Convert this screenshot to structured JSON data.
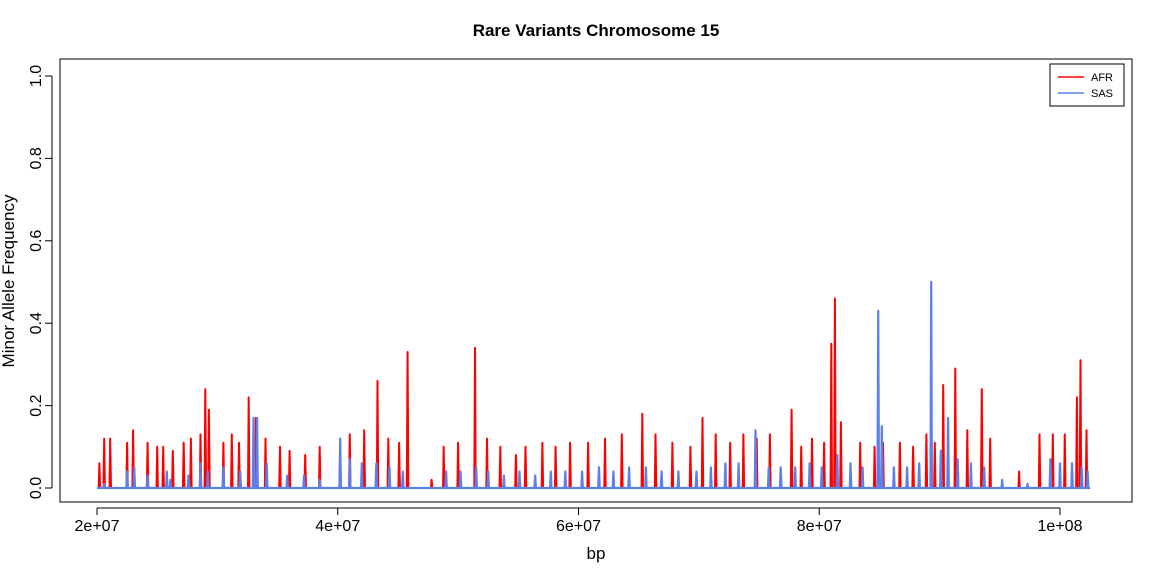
{
  "chart_data": {
    "type": "line",
    "title": "Rare Variants Chromosome 15",
    "xlabel": "bp",
    "ylabel": "Minor Allele Frequency",
    "xlim": [
      20000000,
      102500000
    ],
    "ylim": [
      0,
      1
    ],
    "x_ticks": [
      20000000,
      40000000,
      60000000,
      80000000,
      100000000
    ],
    "x_tick_labels": [
      "2e+07",
      "4e+07",
      "6e+07",
      "8e+07",
      "1e+08"
    ],
    "y_ticks": [
      0.0,
      0.2,
      0.4,
      0.6,
      0.8,
      1.0
    ],
    "y_tick_labels": [
      "0.0",
      "0.2",
      "0.4",
      "0.6",
      "0.8",
      "1.0"
    ],
    "grid": false,
    "legend_position": "top-right",
    "series": [
      {
        "name": "AFR",
        "color": "#ff0000",
        "peaks": [
          [
            20200000,
            0.06
          ],
          [
            20600000,
            0.12
          ],
          [
            21100000,
            0.12
          ],
          [
            22500000,
            0.11
          ],
          [
            23000000,
            0.14
          ],
          [
            24200000,
            0.11
          ],
          [
            25000000,
            0.1
          ],
          [
            25500000,
            0.1
          ],
          [
            26300000,
            0.09
          ],
          [
            27200000,
            0.11
          ],
          [
            27800000,
            0.12
          ],
          [
            28600000,
            0.13
          ],
          [
            29000000,
            0.24
          ],
          [
            29300000,
            0.19
          ],
          [
            30500000,
            0.11
          ],
          [
            31200000,
            0.13
          ],
          [
            31800000,
            0.11
          ],
          [
            32600000,
            0.22
          ],
          [
            33200000,
            0.17
          ],
          [
            34000000,
            0.12
          ],
          [
            35200000,
            0.1
          ],
          [
            36000000,
            0.09
          ],
          [
            37300000,
            0.08
          ],
          [
            38500000,
            0.1
          ],
          [
            40200000,
            0.09
          ],
          [
            41000000,
            0.13
          ],
          [
            42200000,
            0.14
          ],
          [
            43300000,
            0.26
          ],
          [
            44200000,
            0.12
          ],
          [
            45100000,
            0.11
          ],
          [
            45800000,
            0.33
          ],
          [
            47800000,
            0.02
          ],
          [
            48800000,
            0.1
          ],
          [
            50000000,
            0.11
          ],
          [
            51400000,
            0.34
          ],
          [
            52400000,
            0.12
          ],
          [
            53500000,
            0.1
          ],
          [
            54800000,
            0.08
          ],
          [
            55600000,
            0.1
          ],
          [
            57000000,
            0.11
          ],
          [
            58100000,
            0.1
          ],
          [
            59300000,
            0.11
          ],
          [
            60800000,
            0.11
          ],
          [
            62200000,
            0.12
          ],
          [
            63600000,
            0.13
          ],
          [
            65300000,
            0.18
          ],
          [
            66400000,
            0.13
          ],
          [
            67800000,
            0.11
          ],
          [
            69300000,
            0.1
          ],
          [
            70300000,
            0.17
          ],
          [
            71400000,
            0.13
          ],
          [
            72600000,
            0.11
          ],
          [
            73700000,
            0.13
          ],
          [
            74800000,
            0.12
          ],
          [
            75900000,
            0.13
          ],
          [
            77700000,
            0.19
          ],
          [
            78500000,
            0.1
          ],
          [
            79400000,
            0.12
          ],
          [
            80400000,
            0.11
          ],
          [
            81000000,
            0.35
          ],
          [
            81300000,
            0.46
          ],
          [
            81800000,
            0.16
          ],
          [
            83400000,
            0.11
          ],
          [
            84600000,
            0.1
          ],
          [
            85300000,
            0.11
          ],
          [
            86700000,
            0.11
          ],
          [
            87800000,
            0.1
          ],
          [
            88900000,
            0.13
          ],
          [
            89600000,
            0.11
          ],
          [
            90300000,
            0.25
          ],
          [
            91300000,
            0.29
          ],
          [
            92300000,
            0.14
          ],
          [
            93500000,
            0.24
          ],
          [
            94200000,
            0.12
          ],
          [
            96600000,
            0.04
          ],
          [
            98300000,
            0.13
          ],
          [
            99400000,
            0.13
          ],
          [
            100400000,
            0.13
          ],
          [
            101400000,
            0.22
          ],
          [
            101700000,
            0.31
          ],
          [
            102200000,
            0.14
          ]
        ]
      },
      {
        "name": "SAS",
        "color": "#5b80ea",
        "peaks": [
          [
            20600000,
            0.01
          ],
          [
            22500000,
            0.04
          ],
          [
            23100000,
            0.05
          ],
          [
            24200000,
            0.03
          ],
          [
            25800000,
            0.04
          ],
          [
            26100000,
            0.02
          ],
          [
            27600000,
            0.03
          ],
          [
            28600000,
            0.06
          ],
          [
            29200000,
            0.04
          ],
          [
            30500000,
            0.05
          ],
          [
            31900000,
            0.04
          ],
          [
            33000000,
            0.17
          ],
          [
            33300000,
            0.17
          ],
          [
            34100000,
            0.06
          ],
          [
            35800000,
            0.03
          ],
          [
            37200000,
            0.03
          ],
          [
            38500000,
            0.02
          ],
          [
            40200000,
            0.12
          ],
          [
            41000000,
            0.07
          ],
          [
            42000000,
            0.06
          ],
          [
            43200000,
            0.06
          ],
          [
            44300000,
            0.05
          ],
          [
            45400000,
            0.04
          ],
          [
            49000000,
            0.04
          ],
          [
            50200000,
            0.04
          ],
          [
            51500000,
            0.05
          ],
          [
            52500000,
            0.04
          ],
          [
            53800000,
            0.03
          ],
          [
            55100000,
            0.04
          ],
          [
            56400000,
            0.03
          ],
          [
            57700000,
            0.04
          ],
          [
            58900000,
            0.04
          ],
          [
            60300000,
            0.04
          ],
          [
            61700000,
            0.05
          ],
          [
            62900000,
            0.04
          ],
          [
            64200000,
            0.05
          ],
          [
            65600000,
            0.05
          ],
          [
            66900000,
            0.04
          ],
          [
            68300000,
            0.04
          ],
          [
            69800000,
            0.04
          ],
          [
            71000000,
            0.05
          ],
          [
            72200000,
            0.06
          ],
          [
            73300000,
            0.06
          ],
          [
            74700000,
            0.14
          ],
          [
            75800000,
            0.05
          ],
          [
            76800000,
            0.05
          ],
          [
            78000000,
            0.05
          ],
          [
            79200000,
            0.06
          ],
          [
            80200000,
            0.05
          ],
          [
            81500000,
            0.08
          ],
          [
            82600000,
            0.06
          ],
          [
            83600000,
            0.05
          ],
          [
            84900000,
            0.43
          ],
          [
            85200000,
            0.15
          ],
          [
            86200000,
            0.05
          ],
          [
            87300000,
            0.05
          ],
          [
            88300000,
            0.06
          ],
          [
            89300000,
            0.5
          ],
          [
            90100000,
            0.09
          ],
          [
            90700000,
            0.17
          ],
          [
            91500000,
            0.07
          ],
          [
            92600000,
            0.06
          ],
          [
            93700000,
            0.05
          ],
          [
            95200000,
            0.02
          ],
          [
            97300000,
            0.01
          ],
          [
            99200000,
            0.07
          ],
          [
            100000000,
            0.06
          ],
          [
            101000000,
            0.06
          ],
          [
            101800000,
            0.05
          ],
          [
            102300000,
            0.04
          ]
        ]
      }
    ]
  }
}
